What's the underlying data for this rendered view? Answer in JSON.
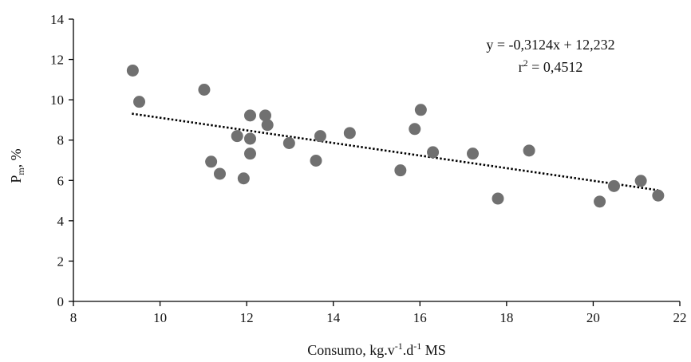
{
  "colors": {
    "point": "#707070",
    "axis": "#000000",
    "trend": "#000000",
    "text": "#111111"
  },
  "chart_data": {
    "type": "scatter",
    "xlim": [
      8,
      22
    ],
    "ylim": [
      0,
      14
    ],
    "x_ticks": [
      8,
      10,
      12,
      14,
      16,
      18,
      20,
      22
    ],
    "y_ticks": [
      0,
      2,
      4,
      6,
      8,
      10,
      12,
      14
    ],
    "grid": false,
    "xlabel": {
      "main": "Consumo, kg.v",
      "sup1": "-1",
      "mid": ".d",
      "sup2": "-1",
      "end": " MS"
    },
    "ylabel": {
      "main": "P",
      "sub": "m",
      "end": ", %"
    },
    "equation": "y = -0,3124x + 12,232",
    "r2": {
      "base": "r",
      "sup": "2",
      "value": " = 0,4512"
    },
    "trendline": {
      "slope": -0.3124,
      "intercept": 12.232,
      "x_start": 9.35,
      "x_end": 21.5
    },
    "points": [
      {
        "x": 9.37,
        "y": 11.45
      },
      {
        "x": 9.52,
        "y": 9.9
      },
      {
        "x": 11.02,
        "y": 10.5
      },
      {
        "x": 11.18,
        "y": 6.93
      },
      {
        "x": 11.38,
        "y": 6.33
      },
      {
        "x": 11.78,
        "y": 8.2
      },
      {
        "x": 11.93,
        "y": 6.1
      },
      {
        "x": 12.08,
        "y": 9.22
      },
      {
        "x": 12.08,
        "y": 8.07
      },
      {
        "x": 12.08,
        "y": 7.33
      },
      {
        "x": 12.43,
        "y": 9.22
      },
      {
        "x": 12.48,
        "y": 8.75
      },
      {
        "x": 12.98,
        "y": 7.85
      },
      {
        "x": 13.6,
        "y": 6.98
      },
      {
        "x": 13.7,
        "y": 8.2
      },
      {
        "x": 14.38,
        "y": 8.35
      },
      {
        "x": 15.55,
        "y": 6.5
      },
      {
        "x": 15.88,
        "y": 8.55
      },
      {
        "x": 16.02,
        "y": 9.5
      },
      {
        "x": 16.3,
        "y": 7.4
      },
      {
        "x": 17.22,
        "y": 7.33
      },
      {
        "x": 17.8,
        "y": 5.1
      },
      {
        "x": 18.52,
        "y": 7.48
      },
      {
        "x": 20.15,
        "y": 4.95
      },
      {
        "x": 20.48,
        "y": 5.72
      },
      {
        "x": 21.1,
        "y": 5.98
      },
      {
        "x": 21.5,
        "y": 5.25
      }
    ]
  }
}
